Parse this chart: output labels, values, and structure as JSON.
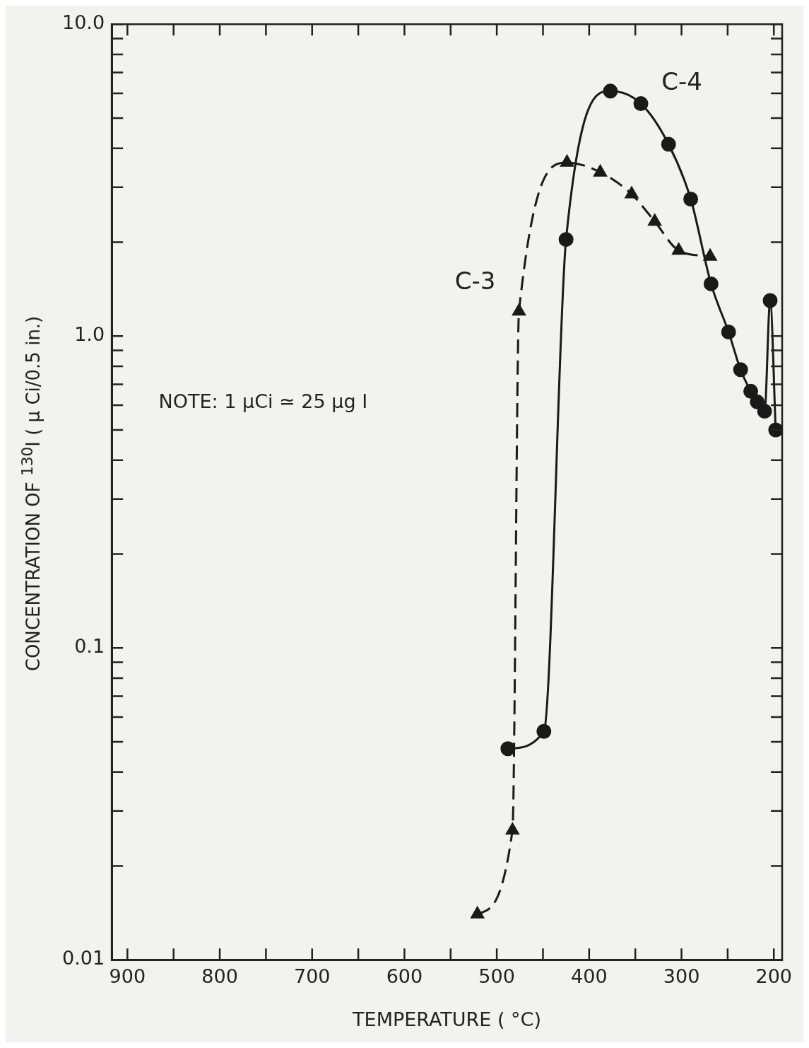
{
  "chart_data": {
    "type": "line",
    "xlabel": "TEMPERATURE ( °C)",
    "ylabel": "CONCENTRATION OF $^{130}$I ( μ Ci/0.5 in.)",
    "annotations": [
      "NOTE: 1 μCi ≃ 25 μg I"
    ],
    "log": "y",
    "xlim": [
      917,
      191
    ],
    "ylim": [
      0.01,
      10
    ],
    "xticks": [
      900,
      {
        "value": 850,
        "label": null
      },
      800,
      {
        "value": 750,
        "label": null
      },
      700,
      {
        "value": 650,
        "label": null
      },
      600,
      {
        "value": 550,
        "label": null
      },
      500,
      {
        "value": 450,
        "label": null
      },
      400,
      {
        "value": 350,
        "label": null
      },
      300,
      {
        "value": 250,
        "label": null
      },
      200
    ],
    "yticks": [
      0.01,
      {
        "value": 0.02,
        "label": null
      },
      {
        "value": 0.03,
        "label": null
      },
      {
        "value": 0.04,
        "label": null
      },
      {
        "value": 0.05,
        "label": null
      },
      {
        "value": 0.06,
        "label": null
      },
      {
        "value": 0.07,
        "label": null
      },
      {
        "value": 0.08,
        "label": null
      },
      {
        "value": 0.09,
        "label": null
      },
      0.1,
      {
        "value": 0.2,
        "label": null
      },
      {
        "value": 0.3,
        "label": null
      },
      {
        "value": 0.4,
        "label": null
      },
      {
        "value": 0.5,
        "label": null
      },
      {
        "value": 0.6,
        "label": null
      },
      {
        "value": 0.7,
        "label": null
      },
      {
        "value": 0.8,
        "label": null
      },
      {
        "value": 0.9,
        "label": null
      },
      {
        "value": 1,
        "label": "1.0"
      },
      {
        "value": 2,
        "label": null
      },
      {
        "value": 3,
        "label": null
      },
      {
        "value": 4,
        "label": null
      },
      {
        "value": 5,
        "label": null
      },
      {
        "value": 6,
        "label": null
      },
      {
        "value": 7,
        "label": null
      },
      {
        "value": 8,
        "label": null
      },
      {
        "value": 9,
        "label": null
      },
      {
        "value": 10,
        "label": "10.0"
      }
    ],
    "grid": false,
    "legend": false,
    "series": [
      {
        "name": "C-3",
        "color": "#1a1a1a",
        "marker": "triangle",
        "line_style": "dashed",
        "x": [
          521,
          483,
          476,
          424,
          388,
          354,
          329,
          303,
          269
        ],
        "values": [
          0.014,
          0.026,
          1.2,
          3.6,
          3.35,
          2.85,
          2.33,
          1.88,
          1.8
        ]
      },
      {
        "name": "C-4",
        "color": "#1a1a1a",
        "marker": "circle",
        "line_style": "solid",
        "x": [
          488,
          449,
          425,
          377,
          344,
          314,
          290,
          268,
          249,
          236,
          225,
          218,
          210,
          204,
          198
        ],
        "values": [
          0.0475,
          0.054,
          2.04,
          6.1,
          5.56,
          4.12,
          2.75,
          1.47,
          1.03,
          0.78,
          0.665,
          0.615,
          0.574,
          1.3,
          0.5
        ]
      }
    ]
  }
}
